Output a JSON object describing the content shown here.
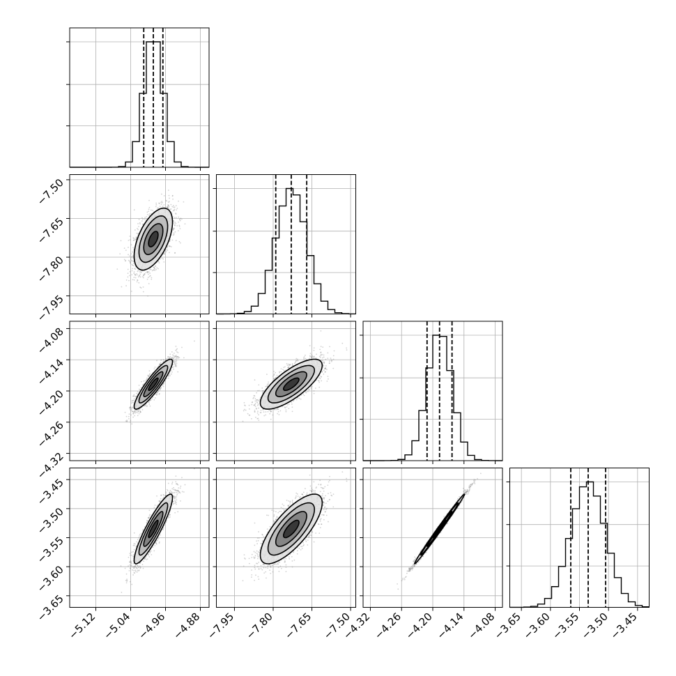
{
  "chart_data": {
    "type": "corner",
    "grid": true,
    "parameters": [
      {
        "mean": -4.988,
        "sd": 0.022,
        "range": [
          -5.18,
          -4.86
        ],
        "quantiles": [
          -5.01,
          -4.988,
          -4.966
        ],
        "ticks": [
          -5.12,
          -5.04,
          -4.96,
          -4.88
        ],
        "tick_labels": [
          "−5.12",
          "−5.04",
          "−4.96",
          "−4.88"
        ]
      },
      {
        "mean": -7.73,
        "sd": 0.06,
        "range": [
          -8.02,
          -7.48
        ],
        "quantiles": [
          -7.79,
          -7.73,
          -7.67
        ],
        "ticks": [
          -7.95,
          -7.8,
          -7.65,
          -7.5
        ],
        "tick_labels": [
          "−7.95",
          "−7.80",
          "−7.65",
          "−7.50"
        ]
      },
      {
        "mean": -4.187,
        "sd": 0.024,
        "range": [
          -4.334,
          -4.066
        ],
        "quantiles": [
          -4.211,
          -4.187,
          -4.163
        ],
        "ticks": [
          -4.32,
          -4.26,
          -4.2,
          -4.14,
          -4.08
        ],
        "tick_labels": [
          "−4.32",
          "−4.26",
          "−4.20",
          "−4.14",
          "−4.08"
        ]
      },
      {
        "mean": -3.535,
        "sd": 0.03,
        "range": [
          -3.67,
          -3.43
        ],
        "quantiles": [
          -3.565,
          -3.535,
          -3.505
        ],
        "ticks": [
          -3.65,
          -3.6,
          -3.55,
          -3.5,
          -3.45
        ],
        "tick_labels": [
          "−3.65",
          "−3.60",
          "−3.55",
          "−3.50",
          "−3.45"
        ]
      }
    ],
    "correlations": [
      [
        1.0,
        0.55,
        0.9,
        0.9
      ],
      [
        0.55,
        1.0,
        0.75,
        0.75
      ],
      [
        0.9,
        0.75,
        1.0,
        0.995
      ],
      [
        0.9,
        0.75,
        0.995,
        1.0
      ]
    ],
    "histogram_bins": 20,
    "contour_levels_sigma": [
      0.5,
      1.0,
      1.5,
      2.0
    ],
    "colors": {
      "lines": "#000000",
      "points": "#7f7f7f",
      "grid": "#b0b0b0"
    }
  }
}
